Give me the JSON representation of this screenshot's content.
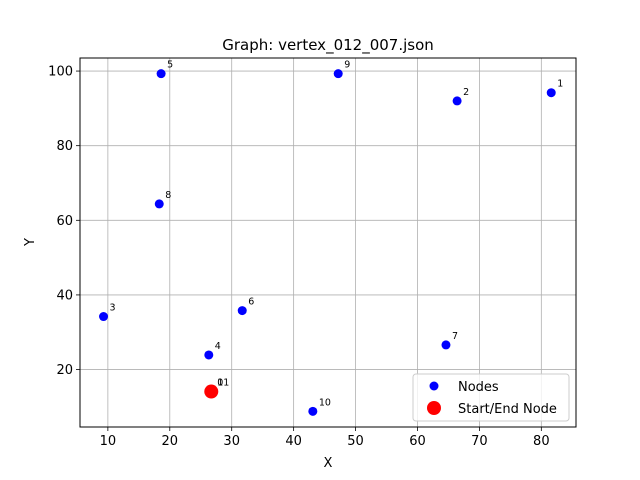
{
  "chart_data": {
    "type": "scatter",
    "title": "Graph: vertex_012_007.json",
    "xlabel": "X",
    "ylabel": "Y",
    "xlim": [
      5.5,
      85.6
    ],
    "ylim": [
      4.6,
      103.5
    ],
    "xticks": [
      10,
      20,
      30,
      40,
      50,
      60,
      70,
      80
    ],
    "yticks": [
      20,
      40,
      60,
      80,
      100
    ],
    "grid": true,
    "legend_position": "lower-right",
    "colors": {
      "nodes": "#0000ff",
      "start_end": "#ff0000",
      "grid": "#b0b0b0"
    },
    "series": [
      {
        "name": "Nodes",
        "points": [
          {
            "label": "0",
            "x": 26.7,
            "y": 14.1
          },
          {
            "label": "1",
            "x": 81.6,
            "y": 94.2
          },
          {
            "label": "2",
            "x": 66.4,
            "y": 92.0
          },
          {
            "label": "3",
            "x": 9.3,
            "y": 34.2
          },
          {
            "label": "4",
            "x": 26.3,
            "y": 23.9
          },
          {
            "label": "5",
            "x": 18.6,
            "y": 99.3
          },
          {
            "label": "6",
            "x": 31.7,
            "y": 35.8
          },
          {
            "label": "7",
            "x": 64.6,
            "y": 26.6
          },
          {
            "label": "8",
            "x": 18.3,
            "y": 64.4
          },
          {
            "label": "9",
            "x": 47.2,
            "y": 99.3
          },
          {
            "label": "10",
            "x": 43.1,
            "y": 8.8
          },
          {
            "label": "11",
            "x": 26.7,
            "y": 14.1
          }
        ]
      },
      {
        "name": "Start/End Node",
        "points": [
          {
            "x": 26.7,
            "y": 14.1
          }
        ]
      }
    ]
  }
}
